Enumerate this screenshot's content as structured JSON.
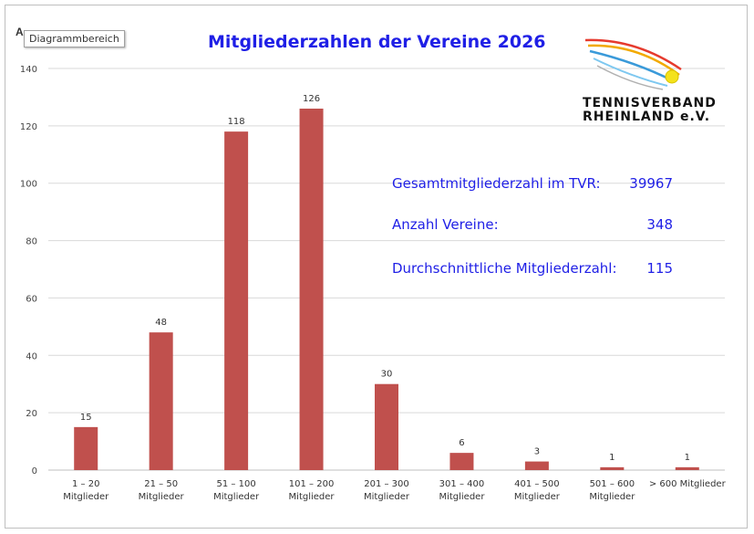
{
  "tooltip": "Diagrammbereich",
  "corner_letter": "A",
  "logo": {
    "line1": "TENNISVERBAND",
    "line2": "RHEINLAND e.V."
  },
  "stats": [
    {
      "label": "Gesamtmitgliederzahl im TVR:",
      "value": "39967"
    },
    {
      "label": "Anzahl Vereine:",
      "value": "348"
    },
    {
      "label": "Durchschnittliche Mitgliederzahl:",
      "value": "115"
    }
  ],
  "colors": {
    "bar": "#c0504d",
    "title": "#1f1fe6",
    "grid": "#d9d9d9"
  },
  "chart_data": {
    "type": "bar",
    "title": "Mitgliederzahlen der Vereine 2026",
    "xlabel": "",
    "ylabel": "",
    "ylim": [
      0,
      140
    ],
    "yticks": [
      0,
      20,
      40,
      60,
      80,
      100,
      120,
      140
    ],
    "grid": true,
    "categories": [
      [
        "1 – 20",
        "Mitglieder"
      ],
      [
        "21 – 50",
        "Mitglieder"
      ],
      [
        "51 – 100",
        "Mitglieder"
      ],
      [
        "101 – 200",
        "Mitglieder"
      ],
      [
        "201 – 300",
        "Mitglieder"
      ],
      [
        "301 – 400",
        "Mitglieder"
      ],
      [
        "401 – 500",
        "Mitglieder"
      ],
      [
        "501 – 600",
        "Mitglieder"
      ],
      [
        "> 600 Mitglieder"
      ]
    ],
    "values": [
      15,
      48,
      118,
      126,
      30,
      6,
      3,
      1,
      1
    ]
  }
}
